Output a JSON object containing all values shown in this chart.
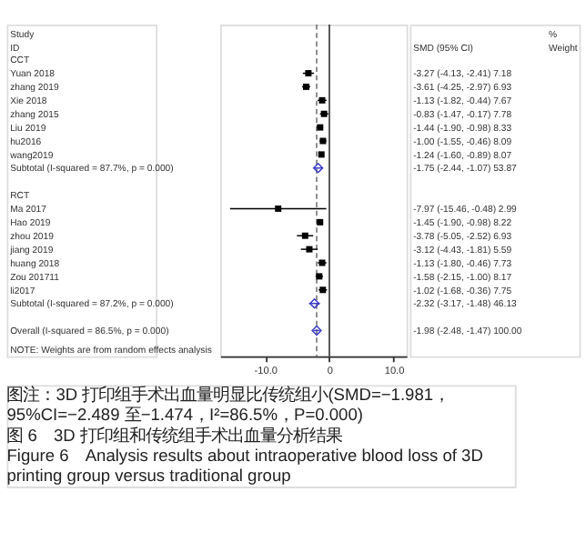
{
  "chart_data": {
    "type": "scatter",
    "orientation": "horizontal",
    "categories": [
      "CCT",
      "Yuan 2018",
      "zhang 2019",
      "Xie 2018",
      "zhang 2015",
      "Liu 2019",
      "hu2016",
      "wang2019",
      "Subtotal (I-squared = 87.7%, p = 0.000)",
      null,
      "RCT",
      "Ma 2017",
      "Hao 2019",
      "zhou 2019",
      "jiang 2019",
      "huang 2018",
      "Zou 201711",
      "li2017",
      "Subtotal (I-squared = 87.2%, p = 0.000)",
      null,
      "Overall (I-squared = 86.5%, p = 0.000)"
    ],
    "series": [
      {
        "color": "#000000",
        "marker": "square",
        "values": [
          null,
          -3.27,
          -3.61,
          -1.13,
          -0.83,
          -1.44,
          -1.0,
          -1.24,
          null,
          null,
          null,
          -7.97,
          -1.45,
          -3.78,
          -3.12,
          -1.13,
          -1.58,
          -1.02,
          null,
          null,
          null
        ],
        "errors": [
          null,
          [
            -4.13,
            -2.41
          ],
          [
            -4.25,
            -2.97
          ],
          [
            -1.82,
            -0.44
          ],
          [
            -1.47,
            -0.17
          ],
          [
            -1.9,
            -0.98
          ],
          [
            -1.55,
            -0.46
          ],
          [
            -1.6,
            -0.89
          ],
          null,
          null,
          null,
          [
            -15.46,
            -0.48
          ],
          [
            -1.9,
            -0.98
          ],
          [
            -5.05,
            -2.52
          ],
          [
            -4.43,
            -1.81
          ],
          [
            -1.8,
            -0.46
          ],
          [
            -2.15,
            -1.0
          ],
          [
            -1.68,
            -0.36
          ],
          null,
          null,
          null
        ]
      },
      {
        "color": "#3c3cc8",
        "marker": "diamond",
        "values": [
          null,
          null,
          null,
          null,
          null,
          null,
          null,
          null,
          -1.75,
          null,
          null,
          null,
          null,
          null,
          null,
          null,
          null,
          null,
          -2.32,
          null,
          -1.98
        ],
        "errors": [
          null,
          null,
          null,
          null,
          null,
          null,
          null,
          null,
          [
            -2.44,
            -1.07
          ],
          null,
          null,
          null,
          null,
          null,
          null,
          null,
          null,
          null,
          [
            -3.17,
            -1.48
          ],
          null,
          [
            -2.48,
            -1.47
          ]
        ]
      }
    ],
    "xlim": [
      -17,
      12
    ],
    "xticks": [
      {
        "value": -10,
        "label": "-10.0"
      },
      {
        "value": 0,
        "label": "0"
      },
      {
        "value": 10,
        "label": "10.0"
      }
    ],
    "ref_lines": [
      {
        "axis": "x",
        "value": 0,
        "line_style": "solid",
        "color": "#000000"
      },
      {
        "axis": "x",
        "value": -1.98,
        "line_style": "dashed",
        "color": "#555555"
      }
    ],
    "grid": false,
    "annotations": [
      "Study",
      "ID",
      "SMD (95% CI)",
      "%",
      "Weight",
      "NOTE: Weights are from random effects analysis",
      "图注：3D 打印组手术出血量明显比传统组小(SMD=−1.981，",
      "95%CI=−2.489 至−1.474，I²=86.5%，P=0.000)",
      "图 6　3D 打印组和传统组手术出血量分析结果",
      "Figure 6　Analysis results about intraoperative blood loss of 3D",
      "printing group versus traditional group",
      "-3.27 (-4.13, -2.41)  7.18",
      "-3.61 (-4.25, -2.97)  6.93",
      "-1.13 (-1.82, -0.44)  7.67",
      "-0.83 (-1.47, -0.17)  7.78",
      "-1.44 (-1.90, -0.98)  8.33",
      "-1.00 (-1.55, -0.46)  8.09",
      "-1.24 (-1.60, -0.89)  8.07",
      "-1.75 (-2.44, -1.07)  53.87",
      "-7.97 (-15.46, -0.48)  2.99",
      "-1.45 (-1.90, -0.98)  8.22",
      "-3.78 (-5.05, -2.52)  6.93",
      "-3.12 (-4.43, -1.81)  5.59",
      "-1.13 (-1.80, -0.46)  7.73",
      "-1.58 (-2.15, -1.00)  8.17",
      "-1.02 (-1.68, -0.36)  7.75",
      "-2.32 (-3.17, -1.48)  46.13",
      "-1.98 (-2.48, -1.47)  100.00"
    ]
  }
}
